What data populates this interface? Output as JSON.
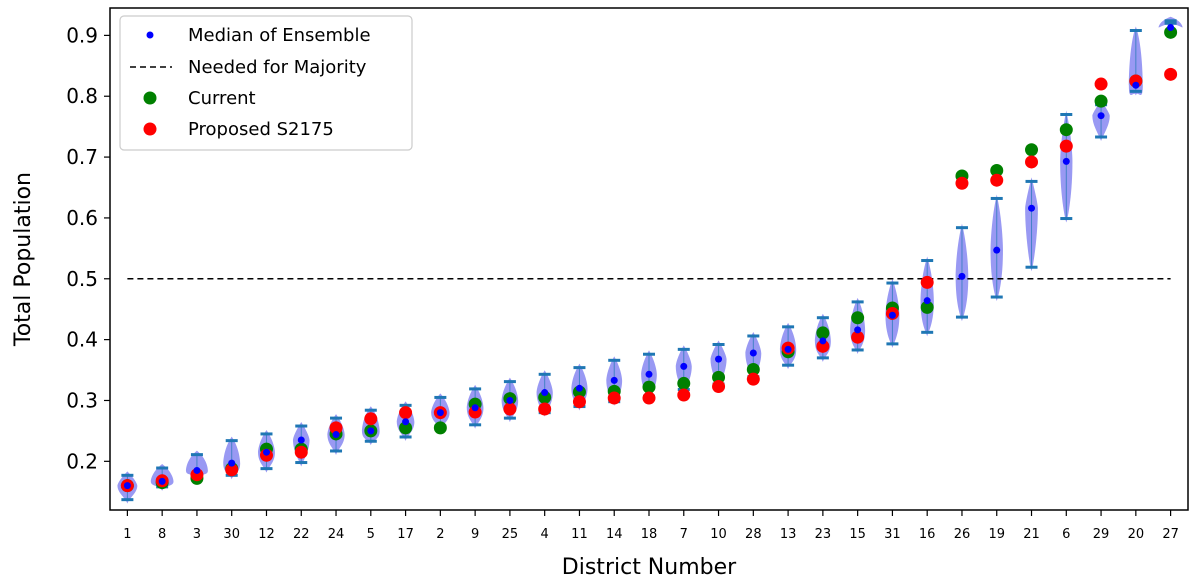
{
  "chart_data": {
    "type": "scatter",
    "xlabel": "District Number",
    "ylabel": "Total Population",
    "ylim": [
      0.12,
      0.945
    ],
    "yticks": [
      "0.2",
      "0.3",
      "0.4",
      "0.5",
      "0.6",
      "0.7",
      "0.8",
      "0.9"
    ],
    "categories": [
      "1",
      "8",
      "3",
      "30",
      "12",
      "22",
      "24",
      "5",
      "17",
      "2",
      "9",
      "25",
      "4",
      "11",
      "14",
      "18",
      "7",
      "10",
      "28",
      "13",
      "23",
      "15",
      "31",
      "16",
      "26",
      "19",
      "21",
      "6",
      "29",
      "20",
      "27"
    ],
    "majority_line": 0.5,
    "legend": {
      "position": "top-left",
      "entries": [
        "Median of Ensemble",
        "Needed for Majority",
        "Current",
        "Proposed S2175"
      ]
    },
    "colors": {
      "median": "#0000ff",
      "majority": "#000000",
      "current": "#008000",
      "proposed": "#ff0000",
      "violin": "#8080f0",
      "whisker": "#1f77b4"
    },
    "series": [
      {
        "name": "Median of Ensemble",
        "values": [
          0.16,
          0.167,
          0.185,
          0.197,
          0.215,
          0.235,
          0.244,
          0.25,
          0.265,
          0.28,
          0.288,
          0.3,
          0.313,
          0.32,
          0.333,
          0.343,
          0.356,
          0.368,
          0.378,
          0.384,
          0.398,
          0.416,
          0.44,
          0.464,
          0.504,
          0.547,
          0.616,
          0.693,
          0.768,
          0.818,
          0.913
        ]
      },
      {
        "name": "Current",
        "values": [
          0.16,
          0.165,
          0.172,
          0.188,
          0.22,
          0.22,
          0.245,
          0.25,
          0.255,
          0.255,
          0.294,
          0.303,
          0.305,
          0.314,
          0.315,
          0.322,
          0.328,
          0.338,
          0.351,
          0.38,
          0.411,
          0.436,
          0.452,
          0.453,
          0.669,
          0.678,
          0.712,
          0.745,
          0.792,
          0.825,
          0.905
        ]
      },
      {
        "name": "Proposed S2175",
        "values": [
          0.16,
          0.168,
          0.178,
          0.186,
          0.21,
          0.215,
          0.255,
          0.27,
          0.28,
          0.28,
          0.281,
          0.286,
          0.286,
          0.298,
          0.304,
          0.304,
          0.309,
          0.323,
          0.335,
          0.386,
          0.389,
          0.404,
          0.443,
          0.494,
          0.657,
          0.662,
          0.692,
          0.718,
          0.82,
          0.825,
          0.836
        ]
      }
    ],
    "ensemble_range": {
      "min": [
        0.137,
        0.158,
        0.178,
        0.177,
        0.188,
        0.198,
        0.217,
        0.233,
        0.24,
        0.258,
        0.26,
        0.271,
        0.28,
        0.29,
        0.298,
        0.307,
        0.318,
        0.327,
        0.339,
        0.358,
        0.37,
        0.383,
        0.393,
        0.412,
        0.437,
        0.47,
        0.519,
        0.599,
        0.733,
        0.808,
        0.92
      ],
      "max": [
        0.177,
        0.189,
        0.211,
        0.234,
        0.245,
        0.258,
        0.271,
        0.284,
        0.292,
        0.305,
        0.319,
        0.331,
        0.343,
        0.354,
        0.366,
        0.376,
        0.384,
        0.392,
        0.406,
        0.421,
        0.436,
        0.462,
        0.493,
        0.53,
        0.584,
        0.632,
        0.66,
        0.77,
        0.786,
        0.908,
        0.924
      ]
    }
  }
}
